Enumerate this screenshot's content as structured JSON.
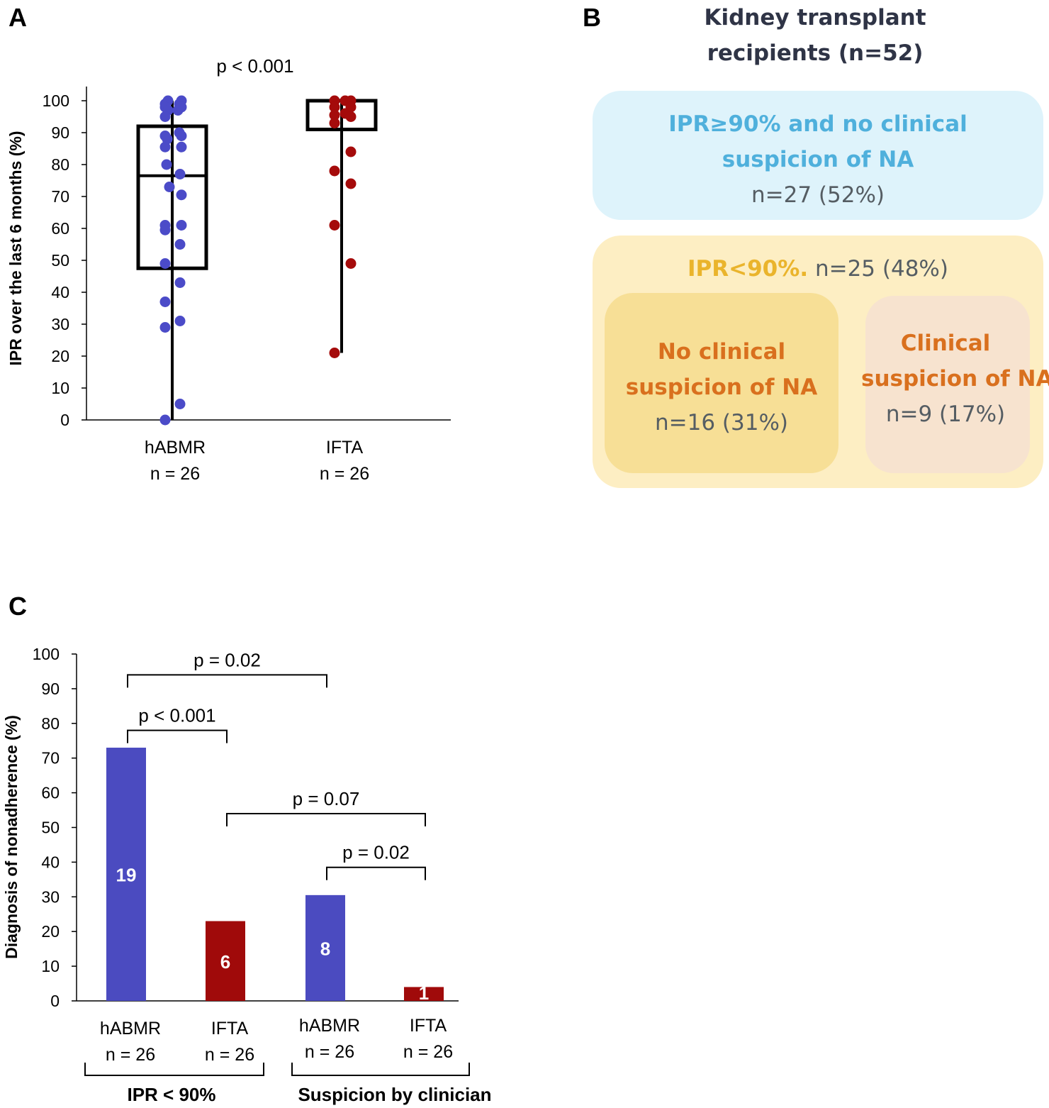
{
  "panel_labels": {
    "a": "A",
    "b": "B",
    "c": "C"
  },
  "chart_data": [
    {
      "panel": "A",
      "type": "box-scatter",
      "ylabel": "IPR over the last 6 months (%)",
      "ylim": [
        0,
        100
      ],
      "yticks": [
        "0",
        "10",
        "20",
        "30",
        "40",
        "50",
        "60",
        "70",
        "80",
        "90",
        "100"
      ],
      "annotation": "p < 0.001",
      "groups": [
        {
          "name": "hABMR",
          "n_label": "n = 26",
          "color": "#4b4bc8",
          "whisker": [
            0,
            100
          ],
          "box": [
            47.5,
            92
          ],
          "median": 76.5,
          "points": [
            [
              -0.1,
              99
            ],
            [
              -0.06,
              100
            ],
            [
              0.1,
              99
            ],
            [
              0.13,
              100
            ],
            [
              -0.1,
              98
            ],
            [
              -0.06,
              97
            ],
            [
              0.08,
              97
            ],
            [
              0.13,
              98
            ],
            [
              -0.1,
              95
            ],
            [
              -0.1,
              89
            ],
            [
              0.1,
              90
            ],
            [
              -0.07,
              88
            ],
            [
              0.13,
              89
            ],
            [
              -0.1,
              85.5
            ],
            [
              0.13,
              85.5
            ],
            [
              -0.08,
              80
            ],
            [
              0.11,
              77
            ],
            [
              -0.04,
              73
            ],
            [
              0.13,
              70.5
            ],
            [
              -0.1,
              61
            ],
            [
              0.13,
              61
            ],
            [
              -0.1,
              59.5
            ],
            [
              0.11,
              55
            ],
            [
              -0.1,
              49
            ],
            [
              0.11,
              43
            ],
            [
              -0.1,
              37
            ],
            [
              0.11,
              31
            ],
            [
              -0.1,
              29
            ],
            [
              0.11,
              5
            ],
            [
              -0.1,
              0
            ]
          ]
        },
        {
          "name": "IFTA",
          "n_label": "n = 26",
          "color": "#a50b0b",
          "whisker": [
            21,
            100
          ],
          "box": [
            91,
            100
          ],
          "median": 100,
          "points": [
            [
              -0.1,
              100
            ],
            [
              0.05,
              100
            ],
            [
              0.13,
              100
            ],
            [
              -0.1,
              98
            ],
            [
              0.13,
              98
            ],
            [
              -0.1,
              95.5
            ],
            [
              0.05,
              96
            ],
            [
              0.13,
              95
            ],
            [
              -0.1,
              93
            ],
            [
              0.13,
              84
            ],
            [
              -0.1,
              78
            ],
            [
              0.13,
              74
            ],
            [
              -0.1,
              61
            ],
            [
              0.13,
              49
            ],
            [
              -0.1,
              21
            ]
          ]
        }
      ]
    },
    {
      "panel": "C",
      "type": "bar",
      "ylabel": "Diagnosis  of nonadherence (%)",
      "ylim": [
        0,
        100
      ],
      "yticks": [
        "0",
        "10",
        "20",
        "30",
        "40",
        "50",
        "60",
        "70",
        "80",
        "90",
        "100"
      ],
      "bars": [
        {
          "name": "hABMR",
          "n_label": "n = 26",
          "value": 73,
          "count": "19",
          "color": "#4b4bc0"
        },
        {
          "name": "IFTA",
          "n_label": "n = 26",
          "value": 23,
          "count": "6",
          "color": "#a00a0a"
        },
        {
          "name": "hABMR",
          "n_label": "n = 26",
          "value": 30.5,
          "count": "8",
          "color": "#4b4bc0"
        },
        {
          "name": "IFTA",
          "n_label": "n = 26",
          "value": 4,
          "count": "1",
          "color": "#a00a0a"
        }
      ],
      "group_labels": [
        "IPR < 90%",
        "Suspicion  by clinician"
      ],
      "comparisons": [
        {
          "from": 0,
          "to": 2,
          "y": 94,
          "label": "p = 0.02"
        },
        {
          "from": 0,
          "to": 1,
          "y": 78,
          "label": "p <  0.001"
        },
        {
          "from": 1,
          "to": 3,
          "y": 54,
          "label": "p = 0.07"
        },
        {
          "from": 2,
          "to": 3,
          "y": 38.5,
          "label": "p = 0.02"
        }
      ]
    }
  ],
  "panel_b": {
    "title_line1": "Kidney transplant",
    "title_line2": "recipients (n=52)",
    "blue_line1": "IPR≥90% and no clinical",
    "blue_line2": "suspicion of NA",
    "blue_count": "n=27 (52%)",
    "outer_label": "IPR<90%.",
    "outer_count": "n=25 (48%)",
    "left_line1": "No clinical",
    "left_line2": "suspicion of NA",
    "left_count": "n=16 (31%)",
    "right_line1": "Clinical",
    "right_line2": "suspicion of NA",
    "right_count": "n=9 (17%)"
  }
}
